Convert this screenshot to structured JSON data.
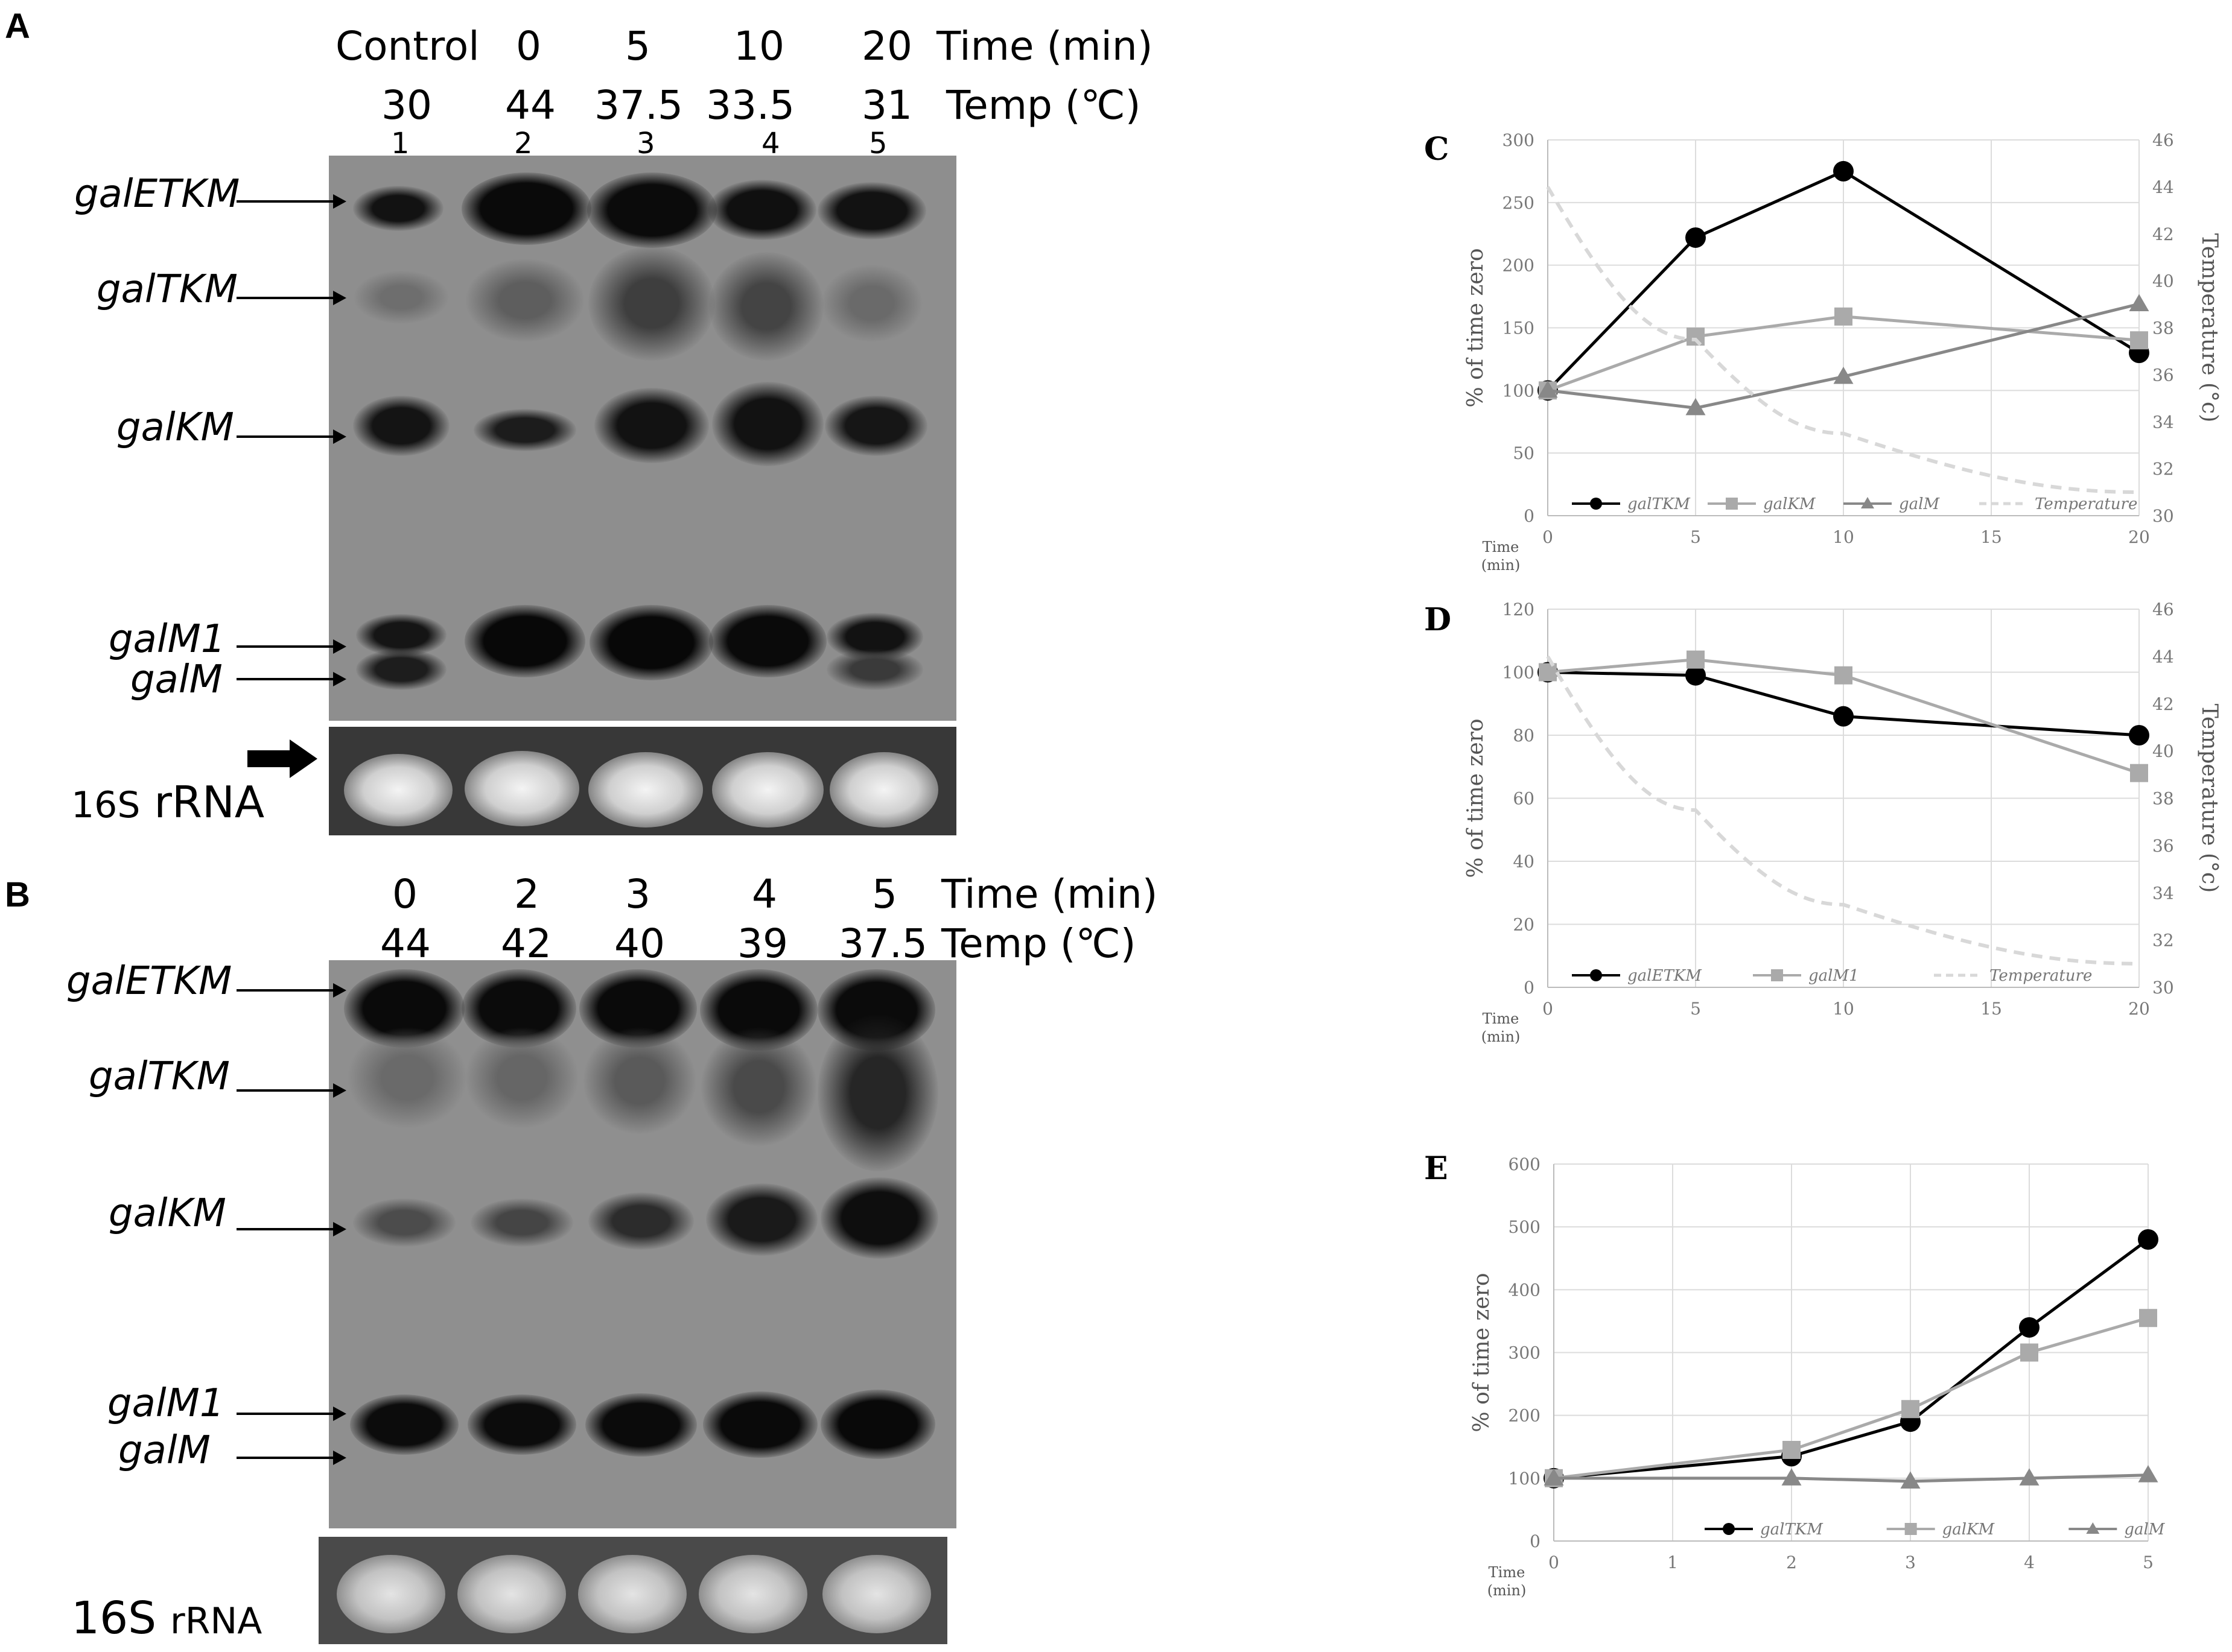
{
  "panel_a": {
    "letter": "A",
    "time_values": [
      "Control",
      "0",
      "5",
      "10",
      "20"
    ],
    "time_label": "Time (min)",
    "temp_values": [
      "30",
      "44",
      "37.5",
      "33.5",
      "31"
    ],
    "temp_label": "Temp (℃)",
    "lane_numbers": [
      "1",
      "2",
      "3",
      "4",
      "5"
    ],
    "bands": [
      "galETKM",
      "galTKM",
      "galKM",
      "galM1",
      "galM"
    ],
    "rrna_label_prefix": "16S",
    "rrna_label_suffix": "rRNA"
  },
  "panel_b": {
    "letter": "B",
    "time_values": [
      "0",
      "2",
      "3",
      "4",
      "5"
    ],
    "time_label": "Time (min)",
    "temp_values": [
      "44",
      "42",
      "40",
      "39",
      "37.5"
    ],
    "temp_label": "Temp (℃)",
    "bands": [
      "galETKM",
      "galTKM",
      "galKM",
      "galM1",
      "galM"
    ],
    "rrna_label_prefix": "16S",
    "rrna_label_suffix": "rRNA"
  },
  "chart_data": [
    {
      "panel": "C",
      "type": "line",
      "x": [
        0,
        5,
        10,
        20
      ],
      "xlabel": "Time (min)",
      "xticks": [
        0,
        5,
        10,
        15,
        20
      ],
      "ylabel": "% of time zero",
      "ylim": [
        0,
        300
      ],
      "yticks": [
        0,
        50,
        100,
        150,
        200,
        250,
        300
      ],
      "y2label": "Temperature (°c)",
      "y2lim": [
        30,
        46
      ],
      "y2ticks": [
        30,
        32,
        34,
        36,
        38,
        40,
        42,
        44,
        46
      ],
      "grid": true,
      "legend": "bottom",
      "series": [
        {
          "name": "galTKM",
          "values": [
            100,
            222,
            275,
            130
          ],
          "color": "#000000",
          "marker": "circle"
        },
        {
          "name": "galKM",
          "values": [
            100,
            143,
            159,
            140
          ],
          "color": "#aaaaaa",
          "marker": "square"
        },
        {
          "name": "galM",
          "values": [
            100,
            86,
            111,
            169
          ],
          "color": "#888888",
          "marker": "triangle"
        },
        {
          "name": "Temperature",
          "axis": "right",
          "x": [
            0,
            5,
            10,
            20
          ],
          "values": [
            44,
            37.5,
            33.5,
            31
          ],
          "color": "#d8d8d8",
          "dash": true
        }
      ]
    },
    {
      "panel": "D",
      "type": "line",
      "x": [
        0,
        5,
        10,
        20
      ],
      "xlabel": "Time (min)",
      "xticks": [
        0,
        5,
        10,
        15,
        20
      ],
      "ylabel": "% of time zero",
      "ylim": [
        0,
        120
      ],
      "yticks": [
        0,
        20,
        40,
        60,
        80,
        100,
        120
      ],
      "y2label": "Temperature (°c)",
      "y2lim": [
        30,
        46
      ],
      "y2ticks": [
        30,
        32,
        34,
        36,
        38,
        40,
        42,
        44,
        46
      ],
      "grid": true,
      "legend": "bottom",
      "series": [
        {
          "name": "galETKM",
          "values": [
            100,
            99,
            86,
            80
          ],
          "color": "#000000",
          "marker": "circle"
        },
        {
          "name": "galM1",
          "values": [
            100,
            104,
            99,
            68
          ],
          "color": "#aaaaaa",
          "marker": "square"
        },
        {
          "name": "Temperature",
          "axis": "right",
          "x": [
            0,
            5,
            10,
            20
          ],
          "values": [
            44,
            37.5,
            33.5,
            31
          ],
          "color": "#d8d8d8",
          "dash": true
        }
      ]
    },
    {
      "panel": "E",
      "type": "line",
      "x": [
        0,
        2,
        3,
        4,
        5
      ],
      "xlabel": "Time (min)",
      "xticks": [
        0,
        1,
        2,
        3,
        4,
        5
      ],
      "ylabel": "% of time zero",
      "ylim": [
        0,
        600
      ],
      "yticks": [
        0,
        100,
        200,
        300,
        400,
        500,
        600
      ],
      "grid": true,
      "legend": "bottom",
      "series": [
        {
          "name": "galTKM",
          "values": [
            100,
            135,
            190,
            340,
            480
          ],
          "color": "#000000",
          "marker": "circle"
        },
        {
          "name": "galKM",
          "values": [
            100,
            145,
            210,
            300,
            355
          ],
          "color": "#aaaaaa",
          "marker": "square"
        },
        {
          "name": "galM",
          "values": [
            100,
            100,
            95,
            100,
            105
          ],
          "color": "#888888",
          "marker": "triangle"
        }
      ]
    }
  ]
}
